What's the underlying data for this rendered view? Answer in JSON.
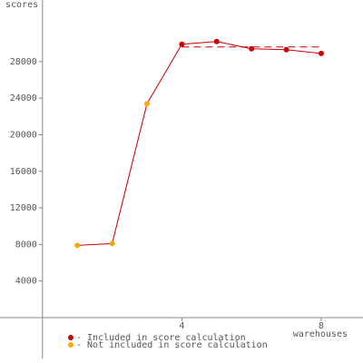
{
  "chart_data": {
    "type": "line",
    "y_label": "scores",
    "x_label": "warehouses",
    "x": [
      1,
      2,
      3,
      4,
      5,
      6,
      7,
      8
    ],
    "values": [
      7900,
      8100,
      23400,
      29900,
      30200,
      29400,
      29300,
      28900
    ],
    "line_color": "#cc0000",
    "point_colors": [
      "#ffaa00",
      "#ffaa00",
      "#ffaa00",
      "#cc0000",
      "#cc0000",
      "#cc0000",
      "#cc0000",
      "#cc0000"
    ],
    "score_line": {
      "value": 29600,
      "x": [
        4,
        8
      ]
    },
    "legend": [
      {
        "label": "- Included in score calculation",
        "color": "#cc0000"
      },
      {
        "label": "- Not included in score calculation",
        "color": "#ffaa00"
      }
    ],
    "xlim": [
      -1.22,
      9.2
    ],
    "ylim": [
      -4470,
      34740
    ],
    "xticks": [
      4,
      8
    ],
    "yticks": [
      4000,
      8000,
      12000,
      16000,
      20000,
      24000,
      28000
    ]
  }
}
